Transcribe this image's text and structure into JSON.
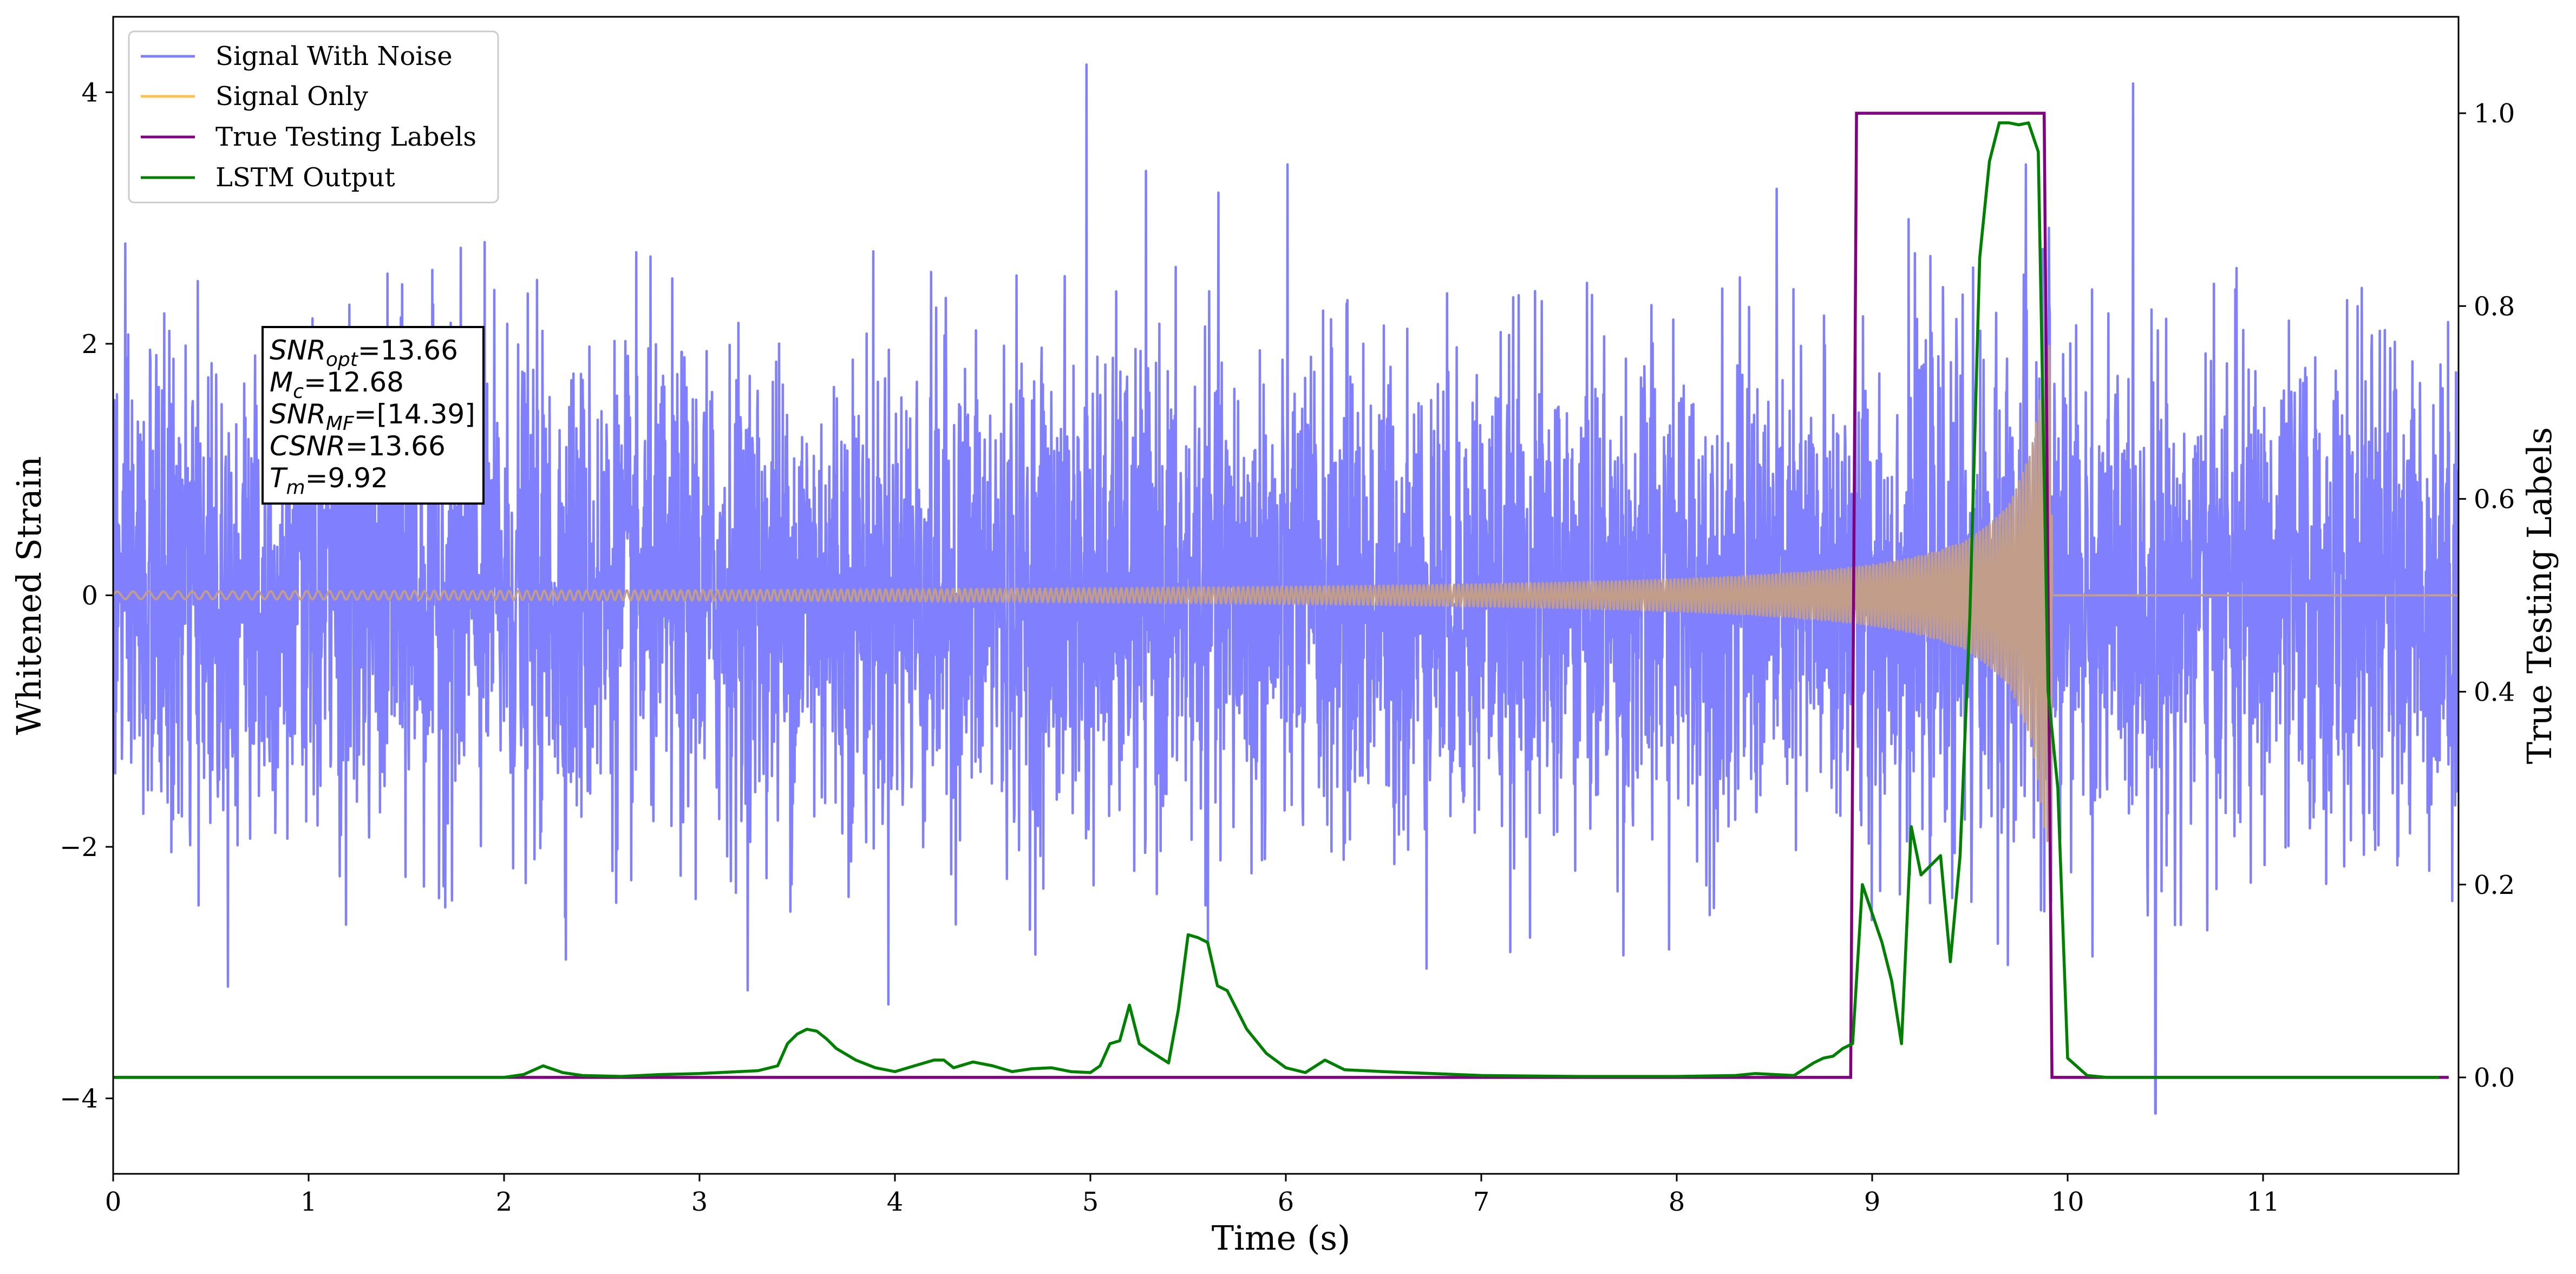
{
  "chart_data": {
    "type": "line",
    "title": "",
    "xlabel": "Time (s)",
    "ylabel": "Whitened Strain",
    "y2label": "True Testing Labels",
    "xlim": [
      0,
      12
    ],
    "ylim": [
      -4.6,
      4.6
    ],
    "y2lim": [
      -0.1,
      1.1
    ],
    "xticks": [
      0,
      1,
      2,
      3,
      4,
      5,
      6,
      7,
      8,
      9,
      10,
      11
    ],
    "yticks": [
      -4,
      -2,
      0,
      2,
      4
    ],
    "yticks_labels": [
      "−4",
      "−2",
      "0",
      "2",
      "4"
    ],
    "y2ticks": [
      0.0,
      0.2,
      0.4,
      0.6,
      0.8,
      1.0
    ],
    "y2ticks_labels": [
      "0.0",
      "0.2",
      "0.4",
      "0.6",
      "0.8",
      "1.0"
    ],
    "grid": false,
    "legend_position": "top-left",
    "legend": [
      "Signal With Noise",
      "Signal Only",
      "True Testing Labels",
      "LSTM Output"
    ],
    "colors": {
      "signal_with_noise": "#8080ff",
      "signal_only": "#ffc04d",
      "overlap": "#c29d8a",
      "labels": "#800080",
      "lstm": "#008000"
    },
    "annotation": {
      "lines": [
        {
          "base": "SNR",
          "sub": "opt",
          "value": "=13.66"
        },
        {
          "base": "M",
          "sub": "c",
          "value": "=12.68"
        },
        {
          "base": "SNR",
          "sub": "MF",
          "value": "=[14.39]"
        },
        {
          "base": "CSNR",
          "sub": "",
          "value": "=13.66"
        },
        {
          "base": "T",
          "sub": "m",
          "value": "=9.92"
        }
      ]
    },
    "series": [
      {
        "name": "Signal With Noise",
        "axis": "left",
        "description_stats": {
          "std": 1.0,
          "max": 4.22,
          "min": -4.12,
          "t_max": 4.98,
          "t_min": 10.45
        }
      },
      {
        "name": "Signal Only",
        "axis": "left",
        "chirp": {
          "t_start": 0,
          "t_merge": 9.92,
          "amp_start": 0.03,
          "amp_peak": 2.0,
          "freq_start": 12,
          "freq_end": 60
        }
      },
      {
        "name": "True Testing Labels",
        "axis": "right",
        "x": [
          0,
          8.89,
          8.92,
          9.88,
          9.92,
          11.95
        ],
        "y": [
          0,
          0,
          1,
          1,
          0,
          0
        ]
      },
      {
        "name": "LSTM Output",
        "axis": "right",
        "x": [
          0,
          2.0,
          2.1,
          2.2,
          2.3,
          2.4,
          2.6,
          2.8,
          3.0,
          3.3,
          3.4,
          3.45,
          3.5,
          3.55,
          3.6,
          3.65,
          3.7,
          3.8,
          3.9,
          4.0,
          4.1,
          4.2,
          4.25,
          4.3,
          4.4,
          4.5,
          4.6,
          4.7,
          4.8,
          4.9,
          5.0,
          5.05,
          5.1,
          5.15,
          5.2,
          5.25,
          5.3,
          5.4,
          5.45,
          5.5,
          5.55,
          5.6,
          5.65,
          5.7,
          5.8,
          5.9,
          6.0,
          6.1,
          6.2,
          6.3,
          6.5,
          7.0,
          7.5,
          8.0,
          8.3,
          8.4,
          8.6,
          8.7,
          8.75,
          8.8,
          8.85,
          8.9,
          8.95,
          9.0,
          9.05,
          9.1,
          9.15,
          9.2,
          9.25,
          9.3,
          9.35,
          9.4,
          9.45,
          9.5,
          9.55,
          9.6,
          9.65,
          9.7,
          9.75,
          9.8,
          9.85,
          9.9,
          9.95,
          10.0,
          10.1,
          10.2,
          11.9
        ],
        "y": [
          0,
          0,
          0.003,
          0.012,
          0.005,
          0.002,
          0.001,
          0.003,
          0.004,
          0.007,
          0.012,
          0.035,
          0.045,
          0.05,
          0.048,
          0.04,
          0.03,
          0.018,
          0.01,
          0.006,
          0.012,
          0.018,
          0.018,
          0.01,
          0.016,
          0.012,
          0.006,
          0.009,
          0.01,
          0.006,
          0.005,
          0.012,
          0.035,
          0.038,
          0.075,
          0.035,
          0.028,
          0.015,
          0.07,
          0.148,
          0.145,
          0.14,
          0.095,
          0.09,
          0.05,
          0.025,
          0.01,
          0.005,
          0.018,
          0.008,
          0.006,
          0.002,
          0.001,
          0.001,
          0.002,
          0.004,
          0.002,
          0.015,
          0.02,
          0.022,
          0.03,
          0.035,
          0.2,
          0.17,
          0.14,
          0.1,
          0.035,
          0.26,
          0.21,
          0.22,
          0.23,
          0.12,
          0.23,
          0.48,
          0.85,
          0.95,
          0.99,
          0.99,
          0.988,
          0.99,
          0.96,
          0.4,
          0.3,
          0.02,
          0.002,
          0,
          0
        ]
      }
    ]
  }
}
